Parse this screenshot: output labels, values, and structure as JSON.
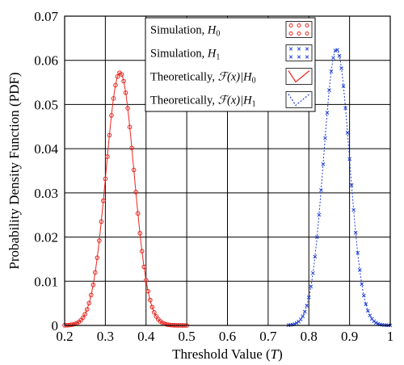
{
  "chart_data": {
    "type": "line",
    "xlabel": "Threshold Value (",
    "xlabel_symbol": "T",
    "xlabel_end": ")",
    "ylabel": "Probability Density Function (PDF)",
    "xlim": [
      0.2,
      1.0
    ],
    "ylim": [
      0,
      0.07
    ],
    "x_ticks": [
      "0.2",
      "0.3",
      "0.4",
      "0.5",
      "0.6",
      "0.7",
      "0.8",
      "0.9",
      "1"
    ],
    "y_ticks": [
      "0",
      "0.01",
      "0.02",
      "0.03",
      "0.04",
      "0.05",
      "0.06",
      "0.07"
    ],
    "grid": true,
    "legend_position": "top-center",
    "legend": [
      {
        "label": "Simulation, ",
        "symbol": "H",
        "sub": "0",
        "marker": "circle",
        "color": "#e8251f"
      },
      {
        "label": "Simulation, ",
        "symbol": "H",
        "sub": "1",
        "marker": "x",
        "color": "#1f3fd6"
      },
      {
        "label": "Theoretically, ",
        "symbol": "ℱ(x)|H",
        "sub": "0",
        "marker": "solid-line",
        "color": "#e8251f"
      },
      {
        "label": "Theoretically, ",
        "symbol": "ℱ(x)|H",
        "sub": "1",
        "marker": "dotted-line",
        "color": "#1f3fd6"
      }
    ],
    "series": [
      {
        "mean": 0.336,
        "std": 0.0345,
        "peak": 0.0572,
        "x_range": [
          0.2,
          0.5
        ],
        "style": "solid",
        "marker": "circle",
        "color": "#e8251f"
      },
      {
        "mean": 0.868,
        "std": 0.0318,
        "peak": 0.0625,
        "x_range": [
          0.75,
          1.0
        ],
        "style": "dotted",
        "marker": "x",
        "color": "#1f3fd6"
      }
    ]
  }
}
